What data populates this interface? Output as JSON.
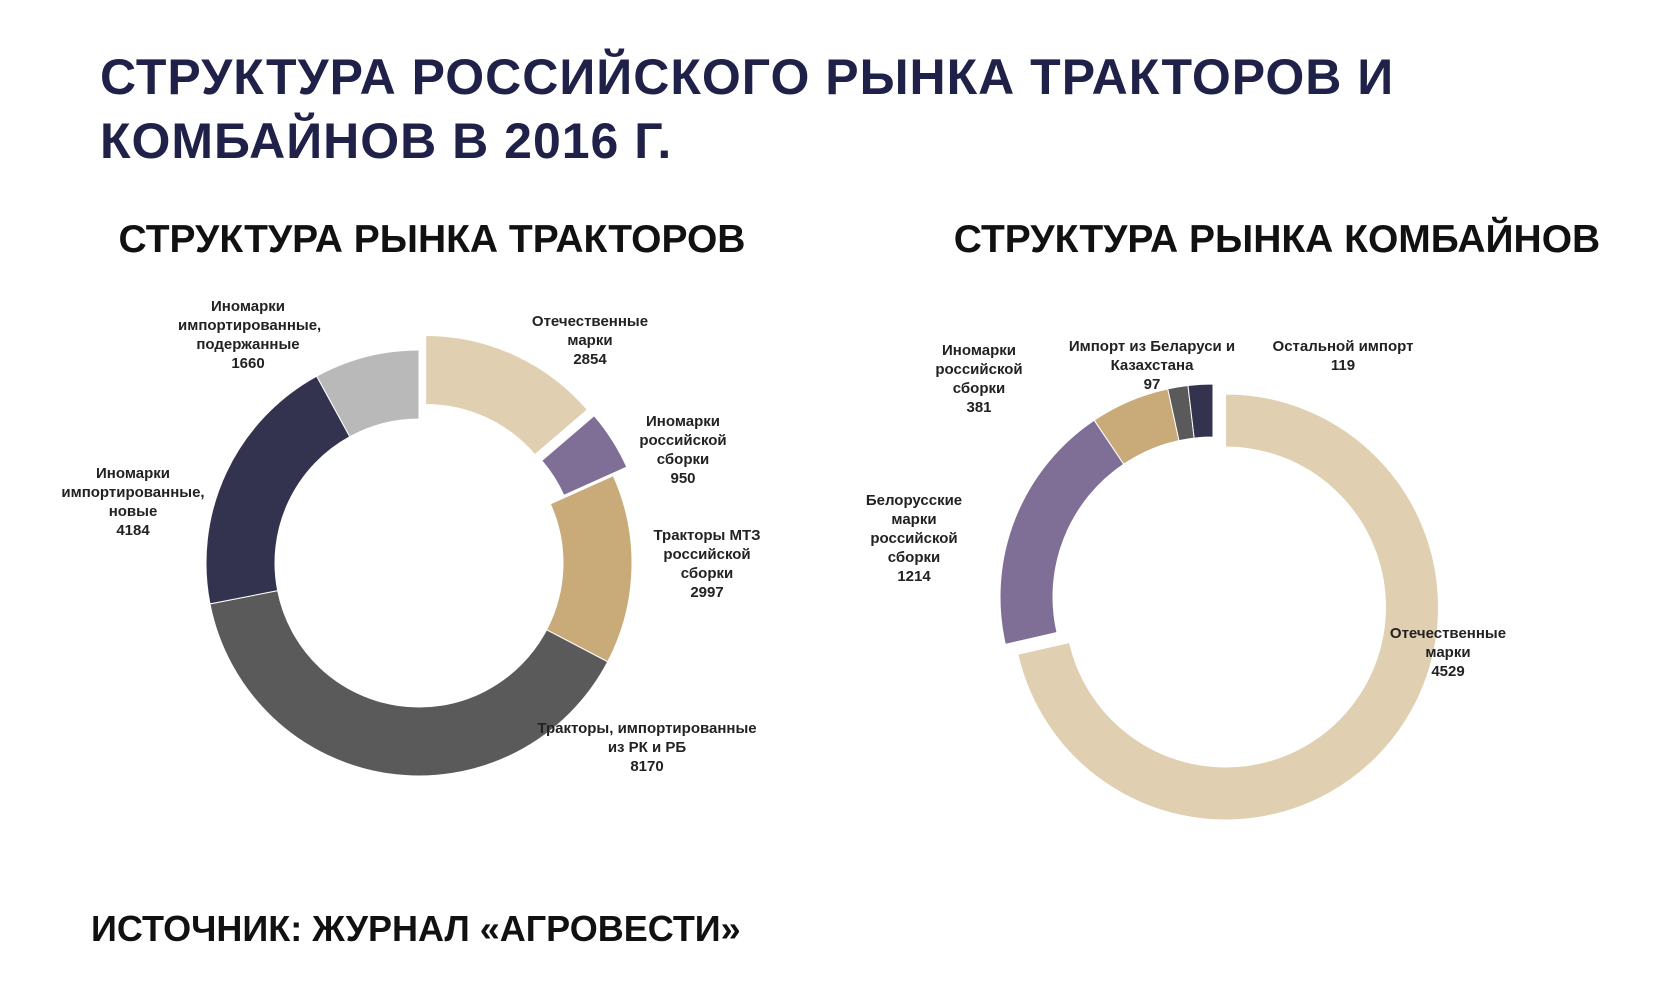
{
  "title": "СТРУКТУРА РОССИЙСКОГО РЫНКА ТРАКТОРОВ И КОМБАЙНОВ В 2016 Г.",
  "source": "ИСТОЧНИК: ЖУРНАЛ «АГРОВЕСТИ»",
  "chart_data": [
    {
      "type": "donut",
      "title": "СТРУКТУРА РЫНКА ТРАКТОРОВ",
      "categories": [
        "Отечественные марки",
        "Иномарки российской сборки",
        "Тракторы МТЗ российской сборки",
        "Тракторы, импортированные из РК и РБ",
        "Иномарки импортированные, новые",
        "Иномарки импортированные, подержанные"
      ],
      "values": [
        2854,
        950,
        2997,
        8170,
        4184,
        1660
      ],
      "colors": [
        "#e0cfb0",
        "#7f6e96",
        "#c9ab7a",
        "#5a5a5a",
        "#33334f",
        "#b9b9b9"
      ],
      "explode": [
        true,
        true,
        false,
        false,
        false,
        false
      ]
    },
    {
      "type": "donut",
      "title": "СТРУКТУРА РЫНКА КОМБАЙНОВ",
      "categories": [
        "Отечественные марки",
        "Белорусские марки российской сборки",
        "Иномарки российской сборки",
        "Импорт из Беларуси и Казахстана",
        "Остальной импорт"
      ],
      "values": [
        4529,
        1214,
        381,
        97,
        119
      ],
      "colors": [
        "#e0cfb0",
        "#7f6e96",
        "#c9ab7a",
        "#5a5a5a",
        "#33334f"
      ],
      "explode": [
        true,
        false,
        false,
        false,
        false
      ]
    }
  ]
}
